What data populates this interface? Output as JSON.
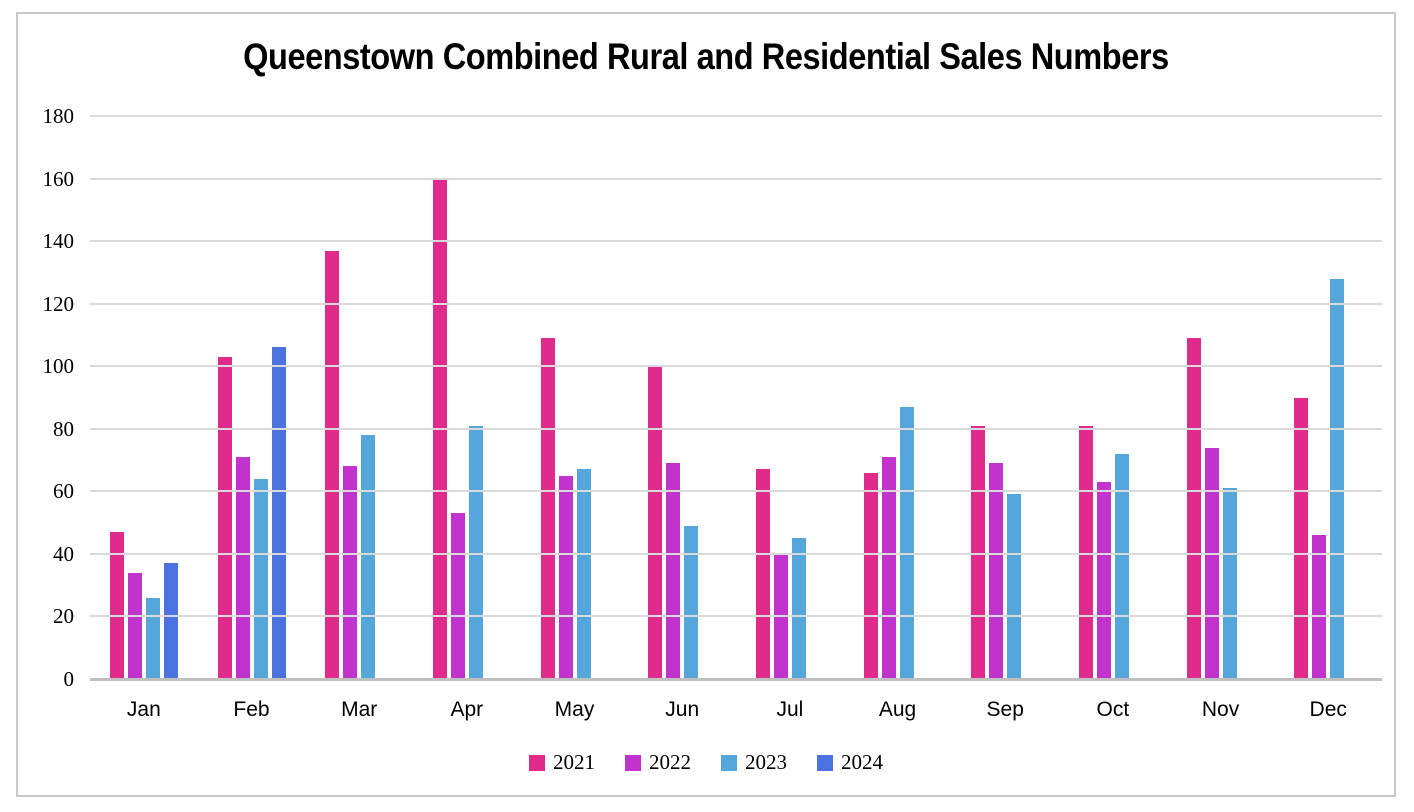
{
  "chart_data": {
    "type": "bar",
    "title": "Queenstown Combined Rural and Residential Sales Numbers",
    "categories": [
      "Jan",
      "Feb",
      "Mar",
      "Apr",
      "May",
      "Jun",
      "Jul",
      "Aug",
      "Sep",
      "Oct",
      "Nov",
      "Dec"
    ],
    "series": [
      {
        "name": "2021",
        "color": "#E02A8C",
        "values": [
          47,
          103,
          137,
          160,
          109,
          100,
          67,
          66,
          81,
          81,
          109,
          90
        ]
      },
      {
        "name": "2022",
        "color": "#C233CE",
        "values": [
          34,
          71,
          68,
          53,
          65,
          69,
          40,
          71,
          69,
          63,
          74,
          46
        ]
      },
      {
        "name": "2023",
        "color": "#54A6DB",
        "values": [
          26,
          64,
          78,
          81,
          67,
          49,
          45,
          87,
          59,
          72,
          61,
          128
        ]
      },
      {
        "name": "2024",
        "color": "#4A73DF",
        "values": [
          37,
          106,
          null,
          null,
          null,
          null,
          null,
          null,
          null,
          null,
          null,
          null
        ]
      }
    ],
    "ylim": [
      0,
      180
    ],
    "ytick_step": 20,
    "yticks": [
      0,
      20,
      40,
      60,
      80,
      100,
      120,
      140,
      160,
      180
    ],
    "xlabel": "",
    "ylabel": "",
    "grid": "horizontal",
    "legend_position": "bottom"
  },
  "style_colors": {
    "gridline": "#dadada",
    "axis_line": "#bfbfbf",
    "frame_border": "#c9c9c9",
    "text": "#000000"
  }
}
